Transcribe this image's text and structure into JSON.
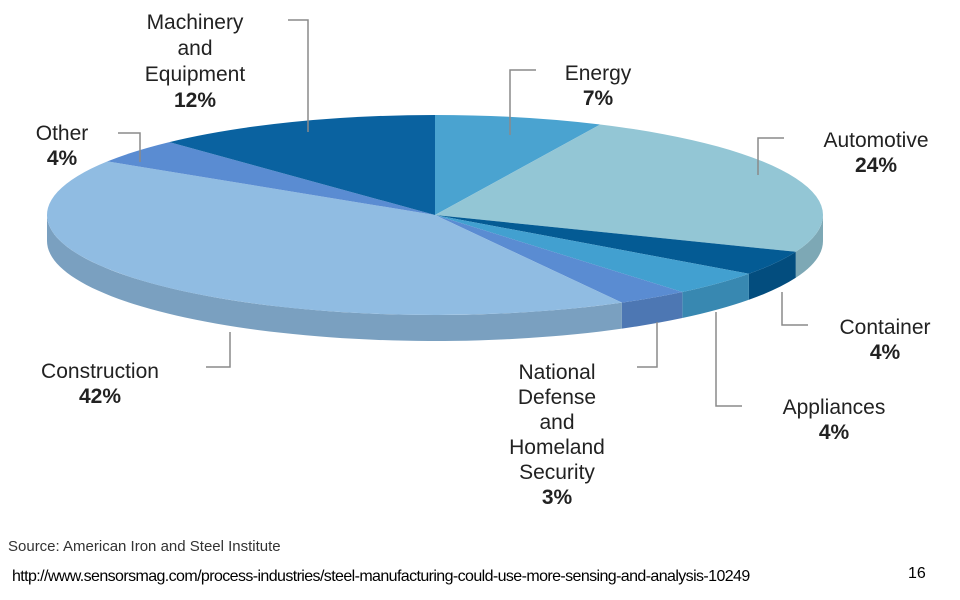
{
  "chart_data": {
    "type": "pie",
    "style": "3d",
    "slices": [
      {
        "label": "Energy",
        "value": 7,
        "value_text": "7%",
        "color": "#4aa3d0"
      },
      {
        "label": "Automotive",
        "value": 24,
        "value_text": "24%",
        "color": "#93c6d5"
      },
      {
        "label": "Container",
        "value": 4,
        "value_text": "4%",
        "color": "#045b94"
      },
      {
        "label": "Appliances",
        "value": 4,
        "value_text": "4%",
        "color": "#42a0d0"
      },
      {
        "label": "National Defense and Homeland Security",
        "value": 3,
        "value_text": "3%",
        "color": "#5a8cd2"
      },
      {
        "label": "Construction",
        "value": 42,
        "value_text": "42%",
        "color": "#90bce2"
      },
      {
        "label": "Other",
        "value": 4,
        "value_text": "4%",
        "color": "#5a8cd2"
      },
      {
        "label": "Machinery and Equipment",
        "value": 12,
        "value_text": "12%",
        "color": "#0a62a0"
      }
    ]
  },
  "source": "Source: American Iron and Steel Institute",
  "url": "http://www.sensorsmag.com/process-industries/steel-manufacturing-could-use-more-sensing-and-analysis-10249",
  "page_number": "16"
}
